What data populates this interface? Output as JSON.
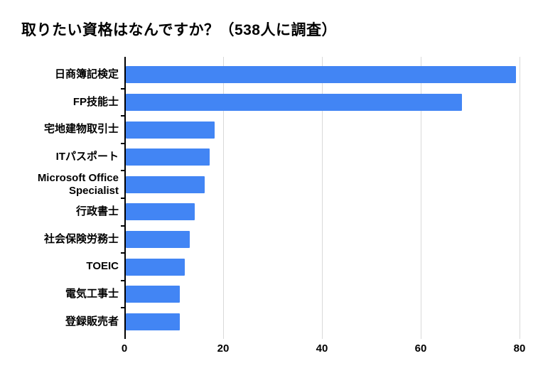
{
  "title": "取りたい資格はなんですか？（538人に調査）",
  "colors": {
    "bar": "#4285f4",
    "gridline": "#d9d9d9",
    "axis": "#000000",
    "text": "#000000",
    "background": "#ffffff"
  },
  "chart_data": {
    "type": "bar",
    "orientation": "horizontal",
    "title": "取りたい資格はなんですか？（538人に調査）",
    "categories": [
      "日商簿記検定",
      "FP技能士",
      "宅地建物取引士",
      "ITパスポート",
      "Microsoft Office Specialist",
      "行政書士",
      "社会保険労務士",
      "TOEIC",
      "電気工事士",
      "登録販売者"
    ],
    "values": [
      79,
      68,
      18,
      17,
      16,
      14,
      13,
      12,
      11,
      11
    ],
    "xlabel": "",
    "ylabel": "",
    "xlim": [
      0,
      80
    ],
    "x_ticks": [
      0,
      20,
      40,
      60,
      80
    ],
    "grid": true,
    "legend": "none"
  }
}
